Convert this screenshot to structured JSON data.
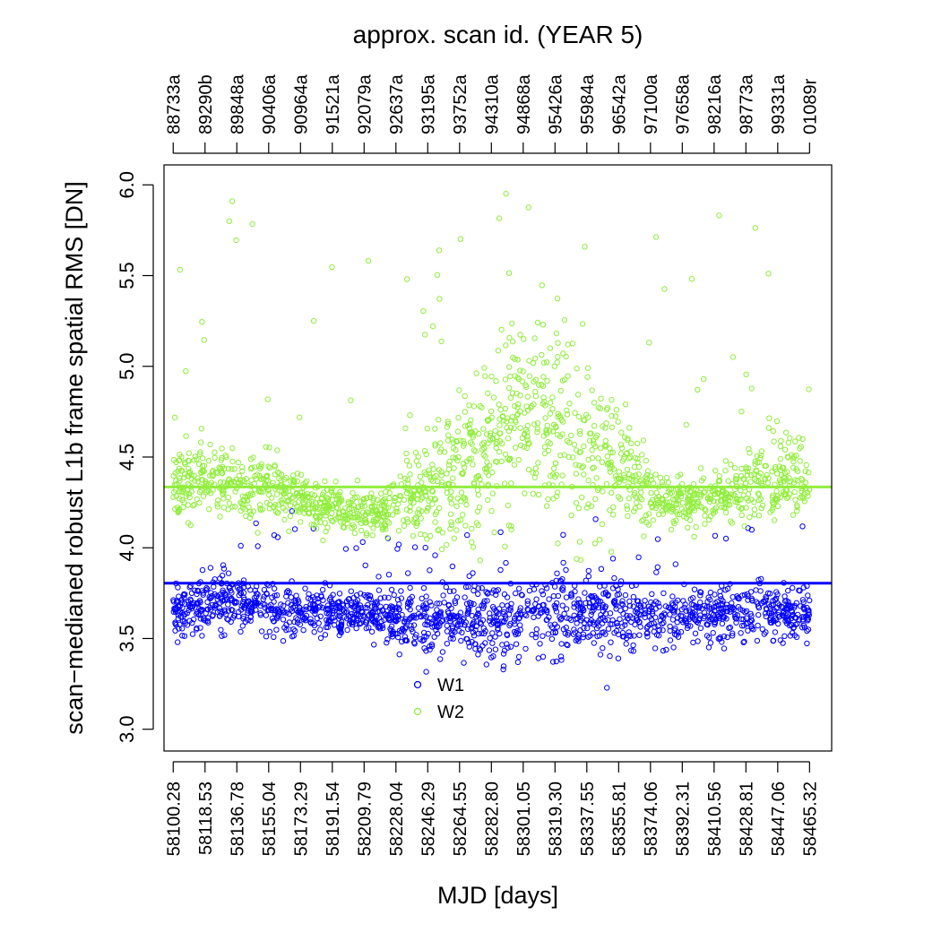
{
  "chart_data": {
    "type": "scatter",
    "title": "approx. scan id. (YEAR 5)",
    "xlabel": "MJD [days]",
    "ylabel": "scan−medianed robust L1b frame spatial RMS [DN]",
    "xlim": [
      58095,
      58478
    ],
    "ylim": [
      2.88,
      6.11
    ],
    "y_ticks": [
      3.0,
      3.5,
      4.0,
      4.5,
      5.0,
      5.5,
      6.0
    ],
    "y_tick_labels": [
      "3.0",
      "3.5",
      "4.0",
      "4.5",
      "5.0",
      "5.5",
      "6.0"
    ],
    "x_ticks": [
      58100.28,
      58118.53,
      58136.78,
      58155.04,
      58173.29,
      58191.54,
      58209.79,
      58228.04,
      58246.29,
      58264.55,
      58282.8,
      58301.05,
      58319.3,
      58337.55,
      58355.81,
      58374.06,
      58392.31,
      58410.56,
      58428.81,
      58447.06,
      58465.32
    ],
    "x_tick_labels": [
      "58100.28",
      "58118.53",
      "58136.78",
      "58155.04",
      "58173.29",
      "58191.54",
      "58209.79",
      "58228.04",
      "58246.29",
      "58264.55",
      "58282.80",
      "58301.05",
      "58319.30",
      "58337.55",
      "58355.81",
      "58374.06",
      "58392.31",
      "58410.56",
      "58428.81",
      "58447.06",
      "58465.32"
    ],
    "top_tick_labels": [
      "88733a",
      "89290b",
      "89848a",
      "90406a",
      "90964a",
      "91521a",
      "92079a",
      "92637a",
      "93195a",
      "93752a",
      "94310a",
      "94868a",
      "95426a",
      "95984a",
      "96542a",
      "97100a",
      "97658a",
      "98216a",
      "98773a",
      "99331a",
      "01089r"
    ],
    "grid": false,
    "legend": "bottom-center",
    "series": [
      {
        "name": "W1",
        "color": "#0000ff",
        "median": 3.805,
        "profile": [
          [
            58100,
            3.66,
            0.07
          ],
          [
            58120,
            3.69,
            0.08
          ],
          [
            58140,
            3.68,
            0.08
          ],
          [
            58160,
            3.67,
            0.07
          ],
          [
            58180,
            3.64,
            0.06
          ],
          [
            58200,
            3.62,
            0.06
          ],
          [
            58220,
            3.62,
            0.07
          ],
          [
            58240,
            3.6,
            0.08
          ],
          [
            58260,
            3.59,
            0.09
          ],
          [
            58280,
            3.6,
            0.1
          ],
          [
            58300,
            3.62,
            0.12
          ],
          [
            58320,
            3.62,
            0.12
          ],
          [
            58340,
            3.63,
            0.11
          ],
          [
            58360,
            3.64,
            0.09
          ],
          [
            58380,
            3.62,
            0.07
          ],
          [
            58400,
            3.62,
            0.07
          ],
          [
            58420,
            3.63,
            0.07
          ],
          [
            58440,
            3.63,
            0.08
          ],
          [
            58466,
            3.62,
            0.07
          ]
        ]
      },
      {
        "name": "W2",
        "color": "#90ee3c",
        "median": 4.335,
        "profile": [
          [
            58100,
            4.33,
            0.09
          ],
          [
            58120,
            4.38,
            0.11
          ],
          [
            58140,
            4.34,
            0.1
          ],
          [
            58160,
            4.33,
            0.09
          ],
          [
            58180,
            4.24,
            0.07
          ],
          [
            58200,
            4.2,
            0.06
          ],
          [
            58220,
            4.2,
            0.07
          ],
          [
            58240,
            4.28,
            0.12
          ],
          [
            58260,
            4.4,
            0.18
          ],
          [
            58280,
            4.55,
            0.22
          ],
          [
            58300,
            4.68,
            0.26
          ],
          [
            58320,
            4.65,
            0.26
          ],
          [
            58340,
            4.55,
            0.22
          ],
          [
            58360,
            4.4,
            0.15
          ],
          [
            58380,
            4.26,
            0.08
          ],
          [
            58400,
            4.24,
            0.07
          ],
          [
            58420,
            4.3,
            0.09
          ],
          [
            58440,
            4.38,
            0.12
          ],
          [
            58466,
            4.4,
            0.1
          ]
        ]
      }
    ]
  }
}
